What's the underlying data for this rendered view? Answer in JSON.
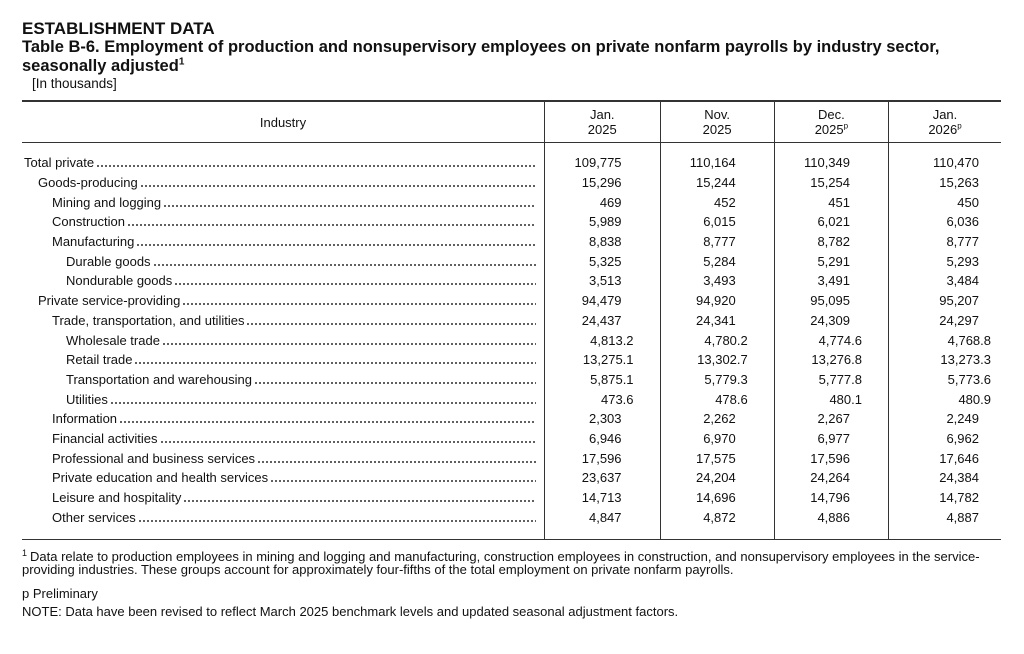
{
  "header": {
    "section": "ESTABLISHMENT DATA",
    "title": "Table B-6. Employment of production and nonsupervisory employees on private nonfarm payrolls by industry sector, seasonally adjusted",
    "title_footnote_mark": "1",
    "units": "[In thousands]"
  },
  "table": {
    "industry_header": "Industry",
    "columns": [
      {
        "month": "Jan.",
        "year": "2025",
        "mark": ""
      },
      {
        "month": "Nov.",
        "year": "2025",
        "mark": ""
      },
      {
        "month": "Dec.",
        "year": "2025",
        "mark": "p"
      },
      {
        "month": "Jan.",
        "year": "2026",
        "mark": "p"
      }
    ],
    "rows": [
      {
        "label": "Total private",
        "indent": 0,
        "values": [
          "109,775",
          "110,164",
          "110,349",
          "110,470"
        ]
      },
      {
        "label": "Goods-producing",
        "indent": 1,
        "values": [
          "15,296",
          "15,244",
          "15,254",
          "15,263"
        ]
      },
      {
        "label": "Mining and logging",
        "indent": 2,
        "values": [
          "469",
          "452",
          "451",
          "450"
        ]
      },
      {
        "label": "Construction",
        "indent": 2,
        "values": [
          "5,989",
          "6,015",
          "6,021",
          "6,036"
        ]
      },
      {
        "label": "Manufacturing",
        "indent": 2,
        "values": [
          "8,838",
          "8,777",
          "8,782",
          "8,777"
        ]
      },
      {
        "label": "Durable goods",
        "indent": 3,
        "values": [
          "5,325",
          "5,284",
          "5,291",
          "5,293"
        ]
      },
      {
        "label": "Nondurable goods",
        "indent": 3,
        "values": [
          "3,513",
          "3,493",
          "3,491",
          "3,484"
        ]
      },
      {
        "label": "Private service-providing",
        "indent": 1,
        "values": [
          "94,479",
          "94,920",
          "95,095",
          "95,207"
        ]
      },
      {
        "label": "Trade, transportation, and utilities",
        "indent": 2,
        "values": [
          "24,437",
          "24,341",
          "24,309",
          "24,297"
        ]
      },
      {
        "label": "Wholesale trade",
        "indent": 3,
        "values": [
          "4,813.2",
          "4,780.2",
          "4,774.6",
          "4,768.8"
        ]
      },
      {
        "label": "Retail trade",
        "indent": 3,
        "values": [
          "13,275.1",
          "13,302.7",
          "13,276.8",
          "13,273.3"
        ]
      },
      {
        "label": "Transportation and warehousing",
        "indent": 3,
        "values": [
          "5,875.1",
          "5,779.3",
          "5,777.8",
          "5,773.6"
        ]
      },
      {
        "label": "Utilities",
        "indent": 3,
        "values": [
          "473.6",
          "478.6",
          "480.1",
          "480.9"
        ]
      },
      {
        "label": "Information",
        "indent": 2,
        "values": [
          "2,303",
          "2,262",
          "2,267",
          "2,249"
        ]
      },
      {
        "label": "Financial activities",
        "indent": 2,
        "values": [
          "6,946",
          "6,970",
          "6,977",
          "6,962"
        ]
      },
      {
        "label": "Professional and business services",
        "indent": 2,
        "values": [
          "17,596",
          "17,575",
          "17,596",
          "17,646"
        ]
      },
      {
        "label": "Private education and health services",
        "indent": 2,
        "values": [
          "23,637",
          "24,204",
          "24,264",
          "24,384"
        ]
      },
      {
        "label": "Leisure and hospitality",
        "indent": 2,
        "values": [
          "14,713",
          "14,696",
          "14,796",
          "14,782"
        ]
      },
      {
        "label": "Other services",
        "indent": 2,
        "values": [
          "4,847",
          "4,872",
          "4,886",
          "4,887"
        ]
      }
    ]
  },
  "footnotes": {
    "mark": "1",
    "text": "Data relate to production employees in mining and logging and manufacturing, construction employees in construction, and nonsupervisory employees in the service-providing industries. These groups account for approximately four-fifths of the total employment on private nonfarm payrolls.",
    "preliminary": "p Preliminary",
    "note": "NOTE: Data have been revised to reflect March 2025 benchmark levels and updated seasonal adjustment factors."
  }
}
